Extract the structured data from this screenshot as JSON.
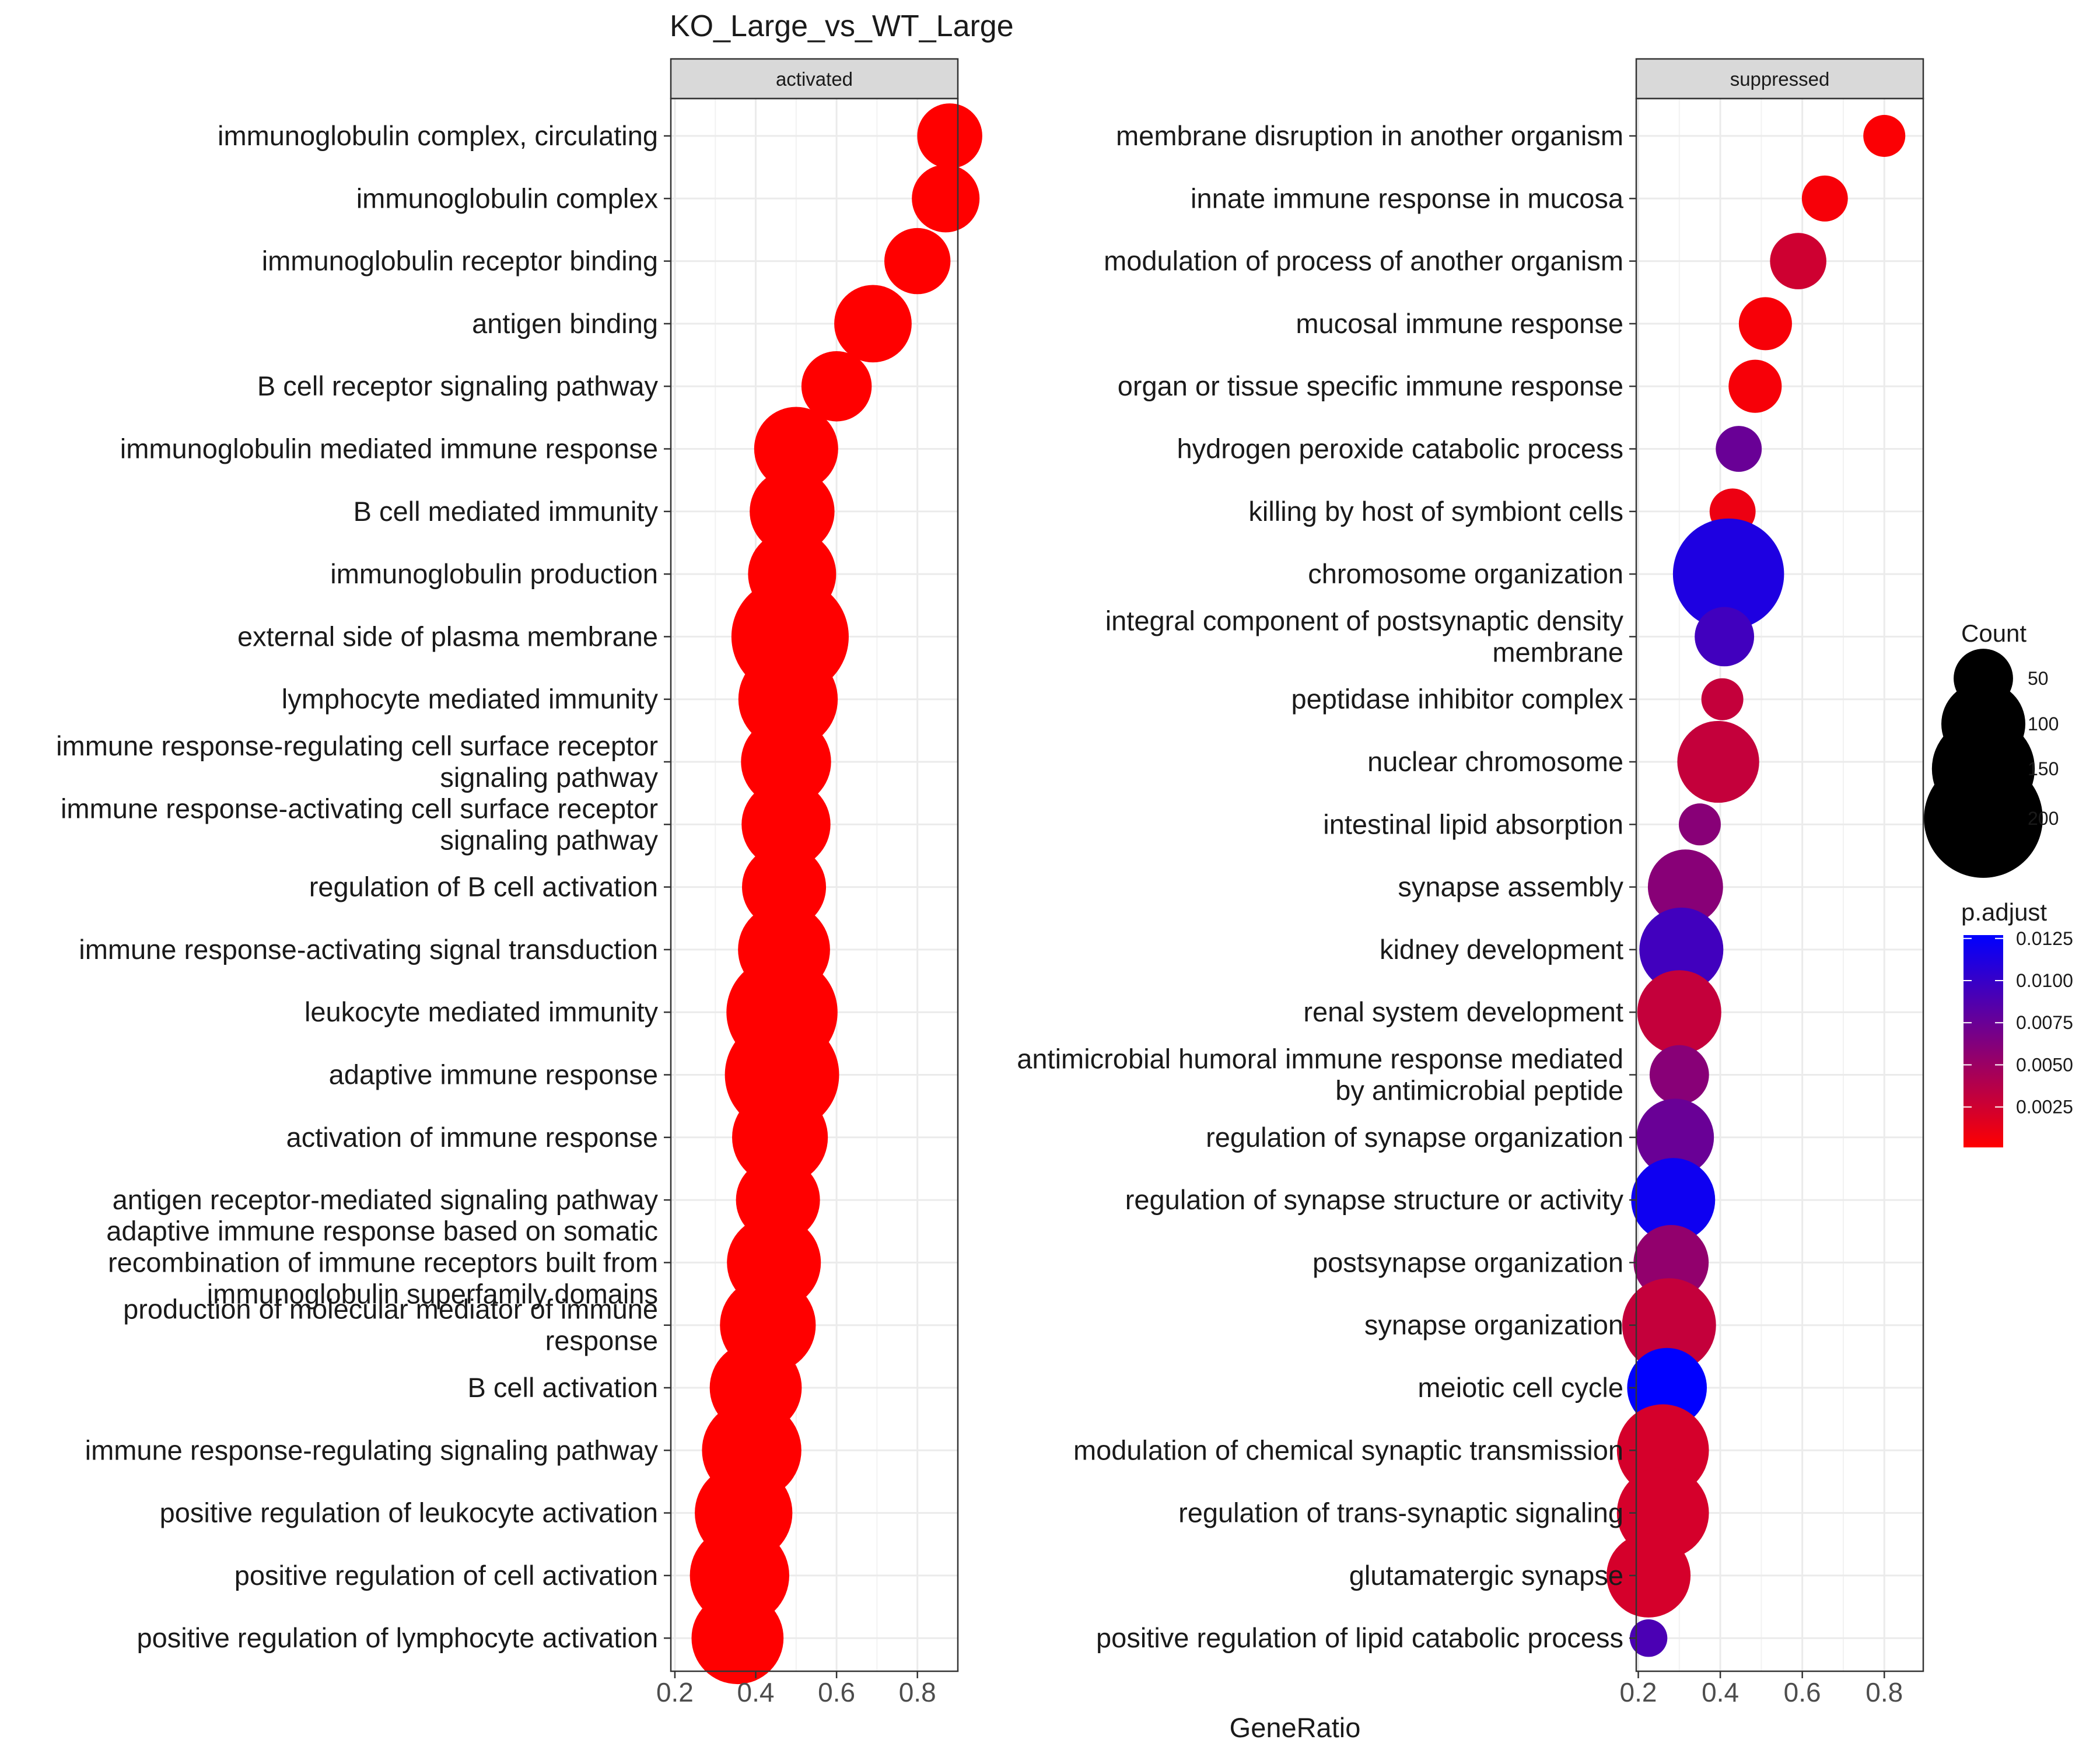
{
  "title": "KO_Large_vs_WT_Large",
  "x_axis_title": "GeneRatio",
  "legend": {
    "count_title": "Count",
    "count_breaks": [
      50,
      100,
      150,
      200
    ],
    "padj_title": "p.adjust",
    "padj_breaks": [
      0.0125,
      0.01,
      0.0075,
      0.005,
      0.0025
    ],
    "padj_labels": [
      "0.0125",
      "0.0100",
      "0.0075",
      "0.0050",
      "0.0025"
    ],
    "padj_range": [
      0.0001,
      0.0127
    ],
    "colors": {
      "low": "#ff0000",
      "high": "#0000ff"
    }
  },
  "chart_data": [
    {
      "type": "scatter",
      "facet": "activated",
      "x_ticks": [
        0.2,
        0.4,
        0.6,
        0.8
      ],
      "x_tick_labels": [
        "0.2",
        "0.4",
        "0.6",
        "0.8"
      ],
      "xlim": [
        0.19,
        0.9
      ],
      "points": [
        {
          "term": "immunoglobulin complex, circulating",
          "gene_ratio": 0.88,
          "count": 60,
          "p_adjust": 0.0001
        },
        {
          "term": "immunoglobulin complex",
          "gene_ratio": 0.87,
          "count": 65,
          "p_adjust": 0.0001
        },
        {
          "term": "immunoglobulin receptor binding",
          "gene_ratio": 0.8,
          "count": 62,
          "p_adjust": 0.0001
        },
        {
          "term": "antigen binding",
          "gene_ratio": 0.69,
          "count": 85,
          "p_adjust": 0.0001
        },
        {
          "term": "B cell receptor signaling pathway",
          "gene_ratio": 0.6,
          "count": 70,
          "p_adjust": 0.0001
        },
        {
          "term": "immunoglobulin mediated immune response",
          "gene_ratio": 0.5,
          "count": 100,
          "p_adjust": 0.0001
        },
        {
          "term": "B cell mediated immunity",
          "gene_ratio": 0.49,
          "count": 102,
          "p_adjust": 0.0001
        },
        {
          "term": "immunoglobulin production",
          "gene_ratio": 0.49,
          "count": 110,
          "p_adjust": 0.0001
        },
        {
          "term": "external side of plasma membrane",
          "gene_ratio": 0.485,
          "count": 195,
          "p_adjust": 0.0001
        },
        {
          "term": "lymphocyte mediated immunity",
          "gene_ratio": 0.48,
          "count": 140,
          "p_adjust": 0.0001
        },
        {
          "term": "immune response-regulating cell surface receptor\nsignaling pathway",
          "gene_ratio": 0.475,
          "count": 115,
          "p_adjust": 0.0001
        },
        {
          "term": "immune response-activating cell surface receptor\nsignaling pathway",
          "gene_ratio": 0.475,
          "count": 112,
          "p_adjust": 0.0001
        },
        {
          "term": "regulation of B cell activation",
          "gene_ratio": 0.47,
          "count": 100,
          "p_adjust": 0.0001
        },
        {
          "term": "immune response-activating signal transduction",
          "gene_ratio": 0.47,
          "count": 120,
          "p_adjust": 0.0001
        },
        {
          "term": "leukocyte mediated immunity",
          "gene_ratio": 0.465,
          "count": 175,
          "p_adjust": 0.0001
        },
        {
          "term": "adaptive immune response",
          "gene_ratio": 0.465,
          "count": 185,
          "p_adjust": 0.0001
        },
        {
          "term": "activation of immune response",
          "gene_ratio": 0.46,
          "count": 130,
          "p_adjust": 0.0001
        },
        {
          "term": "antigen receptor-mediated signaling pathway",
          "gene_ratio": 0.455,
          "count": 100,
          "p_adjust": 0.0001
        },
        {
          "term": "adaptive immune response based on somatic\nrecombination of immune receptors built from\nimmunoglobulin superfamily domains",
          "gene_ratio": 0.445,
          "count": 125,
          "p_adjust": 0.0001
        },
        {
          "term": "production of molecular mediator of immune\nresponse",
          "gene_ratio": 0.43,
          "count": 130,
          "p_adjust": 0.0001
        },
        {
          "term": "B cell activation",
          "gene_ratio": 0.4,
          "count": 120,
          "p_adjust": 0.0001
        },
        {
          "term": "immune response-regulating signaling pathway",
          "gene_ratio": 0.39,
          "count": 140,
          "p_adjust": 0.0001
        },
        {
          "term": "positive regulation of leukocyte activation",
          "gene_ratio": 0.37,
          "count": 135,
          "p_adjust": 0.0001
        },
        {
          "term": "positive regulation of cell activation",
          "gene_ratio": 0.36,
          "count": 140,
          "p_adjust": 0.0001
        },
        {
          "term": "positive regulation of lymphocyte activation",
          "gene_ratio": 0.355,
          "count": 120,
          "p_adjust": 0.0001
        }
      ]
    },
    {
      "type": "scatter",
      "facet": "suppressed",
      "x_ticks": [
        0.2,
        0.4,
        0.6,
        0.8
      ],
      "x_tick_labels": [
        "0.2",
        "0.4",
        "0.6",
        "0.8"
      ],
      "xlim": [
        0.195,
        0.895
      ],
      "points": [
        {
          "term": "membrane disruption in another organism",
          "gene_ratio": 0.8,
          "count": 25,
          "p_adjust": 0.0003
        },
        {
          "term": "innate immune response in mucosa",
          "gene_ratio": 0.655,
          "count": 30,
          "p_adjust": 0.0005
        },
        {
          "term": "modulation of process of another organism",
          "gene_ratio": 0.59,
          "count": 45,
          "p_adjust": 0.0025
        },
        {
          "term": "mucosal immune response",
          "gene_ratio": 0.51,
          "count": 40,
          "p_adjust": 0.0005
        },
        {
          "term": "organ or tissue specific immune response",
          "gene_ratio": 0.485,
          "count": 40,
          "p_adjust": 0.0005
        },
        {
          "term": "hydrogen peroxide catabolic process",
          "gene_ratio": 0.445,
          "count": 30,
          "p_adjust": 0.0075
        },
        {
          "term": "killing by host of symbiont cells",
          "gene_ratio": 0.43,
          "count": 30,
          "p_adjust": 0.001
        },
        {
          "term": "chromosome organization",
          "gene_ratio": 0.42,
          "count": 175,
          "p_adjust": 0.0112
        },
        {
          "term": "integral component of postsynaptic density\nmembrane",
          "gene_ratio": 0.41,
          "count": 50,
          "p_adjust": 0.0095
        },
        {
          "term": "peptidase inhibitor complex",
          "gene_ratio": 0.405,
          "count": 25,
          "p_adjust": 0.003
        },
        {
          "term": "nuclear chromosome",
          "gene_ratio": 0.395,
          "count": 95,
          "p_adjust": 0.003
        },
        {
          "term": "intestinal lipid absorption",
          "gene_ratio": 0.35,
          "count": 25,
          "p_adjust": 0.006
        },
        {
          "term": "synapse assembly",
          "gene_ratio": 0.315,
          "count": 80,
          "p_adjust": 0.006
        },
        {
          "term": "kidney development",
          "gene_ratio": 0.305,
          "count": 100,
          "p_adjust": 0.0095
        },
        {
          "term": "renal system development",
          "gene_ratio": 0.3,
          "count": 100,
          "p_adjust": 0.003
        },
        {
          "term": "antimicrobial humoral immune response mediated\nby antimicrobial peptide",
          "gene_ratio": 0.3,
          "count": 50,
          "p_adjust": 0.006
        },
        {
          "term": "regulation of synapse organization",
          "gene_ratio": 0.29,
          "count": 85,
          "p_adjust": 0.0075
        },
        {
          "term": "regulation of synapse structure or activity",
          "gene_ratio": 0.285,
          "count": 100,
          "p_adjust": 0.012
        },
        {
          "term": "postsynapse organization",
          "gene_ratio": 0.28,
          "count": 80,
          "p_adjust": 0.0055
        },
        {
          "term": "synapse organization",
          "gene_ratio": 0.275,
          "count": 125,
          "p_adjust": 0.003
        },
        {
          "term": "meiotic cell cycle",
          "gene_ratio": 0.27,
          "count": 90,
          "p_adjust": 0.0127
        },
        {
          "term": "modulation of chemical synaptic transmission",
          "gene_ratio": 0.26,
          "count": 120,
          "p_adjust": 0.0022
        },
        {
          "term": "regulation of trans-synaptic signaling",
          "gene_ratio": 0.26,
          "count": 120,
          "p_adjust": 0.0022
        },
        {
          "term": "glutamatergic synapse",
          "gene_ratio": 0.225,
          "count": 100,
          "p_adjust": 0.0022
        },
        {
          "term": "positive regulation of lipid catabolic process",
          "gene_ratio": 0.225,
          "count": 20,
          "p_adjust": 0.009
        }
      ]
    }
  ]
}
